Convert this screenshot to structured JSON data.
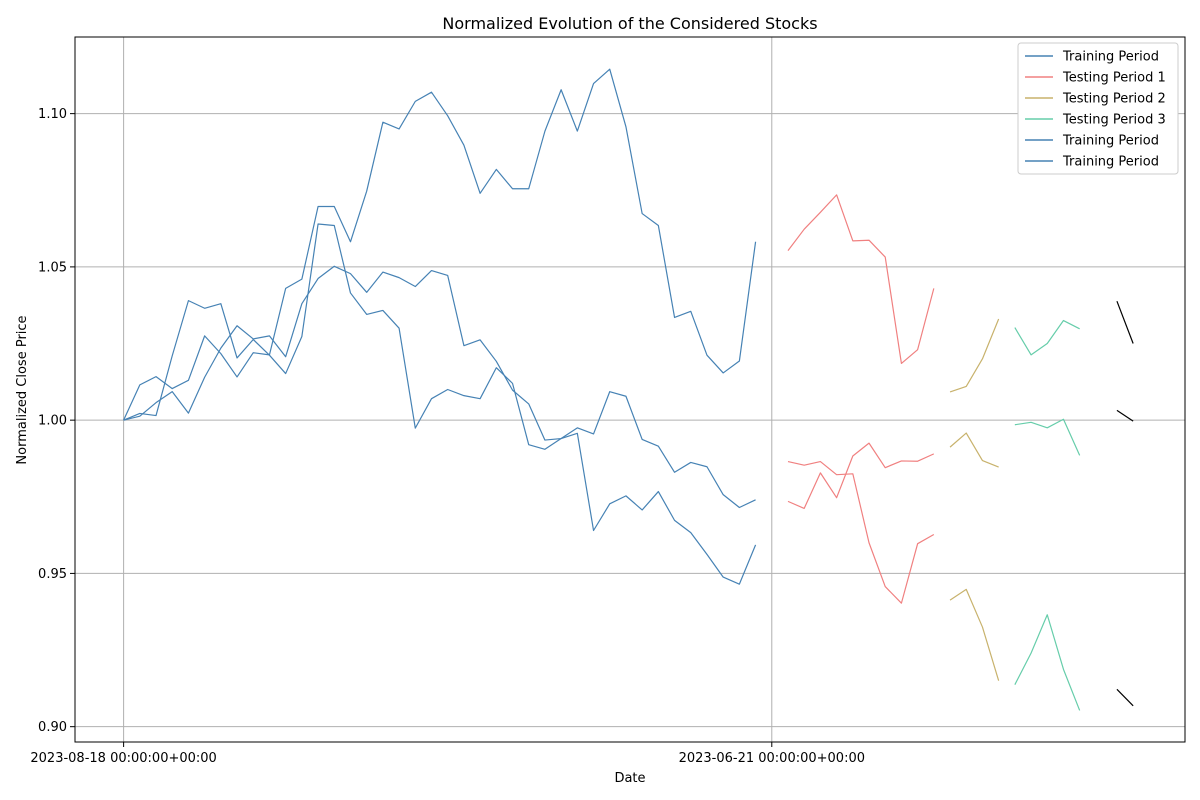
{
  "chart_data": {
    "type": "line",
    "title": "Normalized Evolution of the Considered Stocks",
    "xlabel": "Date",
    "ylabel": "Normalized Close Price",
    "ylim": [
      0.895,
      1.125
    ],
    "y_ticks": [
      "0.90",
      "0.95",
      "1.00",
      "1.05",
      "1.10"
    ],
    "y_tick_values": [
      0.9,
      0.95,
      1.0,
      1.05,
      1.1
    ],
    "x_ticks": [
      "2023-08-18 00:00:00+00:00",
      "2023-06-21 00:00:00+00:00"
    ],
    "x_tick_index": [
      0,
      40
    ],
    "xlim_index": [
      -3,
      65.5
    ],
    "grid": true,
    "legend_position": "top-right",
    "legend": [
      "Training Period",
      "Testing Period 1",
      "Testing Period 2",
      "Testing Period 3",
      "Training Period",
      "Training Period"
    ],
    "colors": {
      "training": "#4682b4",
      "testing1": "#f08080",
      "testing2": "#c8b26c",
      "testing3": "#66cdaa",
      "black": "#000000"
    },
    "series": [
      {
        "name": "Training Period",
        "color": "#4682b4",
        "x_start": 0,
        "values": [
          1.0,
          1.0115,
          1.0142,
          1.0103,
          1.013,
          1.0275,
          1.0217,
          1.0141,
          1.022,
          1.0213,
          1.043,
          1.046,
          1.0697,
          1.0697,
          1.0582,
          1.0747,
          1.0972,
          1.095,
          1.104,
          1.107,
          1.0993,
          1.0897,
          1.074,
          1.0818,
          1.0755,
          1.0755,
          1.0943,
          1.1078,
          1.0943,
          1.1098,
          1.1145,
          1.0957,
          1.0674,
          1.0635,
          1.0335,
          1.0355,
          1.0212,
          1.0154,
          1.0193,
          1.0582
        ]
      },
      {
        "name": "Training Period",
        "color": "#4682b4",
        "x_start": 0,
        "values": [
          1.0,
          1.0013,
          1.0057,
          1.0093,
          1.0023,
          1.014,
          1.0235,
          1.0308,
          1.0265,
          1.0275,
          1.0207,
          1.038,
          1.0462,
          1.0502,
          1.0478,
          1.0417,
          1.0483,
          1.0465,
          1.0436,
          1.0488,
          1.0472,
          1.0243,
          1.0262,
          1.0192,
          1.0098,
          1.0053,
          0.9935,
          0.994,
          0.9975,
          0.9955,
          1.0093,
          1.0078,
          0.9937,
          0.9915,
          0.983,
          0.9862,
          0.9848,
          0.9757,
          0.9715,
          0.974
        ]
      },
      {
        "name": "Training Period",
        "color": "#4682b4",
        "x_start": 0,
        "values": [
          1.0,
          1.0022,
          1.0015,
          1.021,
          1.039,
          1.0365,
          1.038,
          1.0203,
          1.0263,
          1.0212,
          1.0152,
          1.0273,
          1.064,
          1.0635,
          1.0415,
          1.0345,
          1.0358,
          1.03,
          0.9974,
          1.007,
          1.01,
          1.008,
          1.007,
          1.0171,
          1.012,
          0.992,
          0.9905,
          0.994,
          0.9957,
          0.964,
          0.9727,
          0.9753,
          0.9707,
          0.9767,
          0.9673,
          0.9633,
          0.9562,
          0.9488,
          0.9465,
          0.9593
        ]
      },
      {
        "name": "Testing Period 1",
        "color": "#f08080",
        "x_start": 41,
        "values": [
          1.0553,
          1.0623,
          1.0678,
          1.0735,
          1.0585,
          1.0587,
          1.0532,
          1.0185,
          1.023,
          1.043
        ]
      },
      {
        "name": "Testing Period 1",
        "color": "#f08080",
        "x_start": 41,
        "values": [
          0.9865,
          0.9853,
          0.9865,
          0.9822,
          0.9825,
          0.96,
          0.9457,
          0.9403,
          0.9597,
          0.9627
        ]
      },
      {
        "name": "Testing Period 1",
        "color": "#f08080",
        "x_start": 41,
        "values": [
          0.9735,
          0.9712,
          0.9828,
          0.9747,
          0.9883,
          0.9925,
          0.9845,
          0.9867,
          0.9866,
          0.989
        ]
      },
      {
        "name": "Testing Period 2",
        "color": "#c8b26c",
        "x_start": 51,
        "values": [
          1.0092,
          1.011,
          1.02,
          1.033
        ]
      },
      {
        "name": "Testing Period 2",
        "color": "#c8b26c",
        "x_start": 51,
        "values": [
          0.9912,
          0.9958,
          0.9868,
          0.9847
        ]
      },
      {
        "name": "Testing Period 2",
        "color": "#c8b26c",
        "x_start": 51,
        "values": [
          0.9413,
          0.9448,
          0.9325,
          0.915
        ]
      },
      {
        "name": "Testing Period 3",
        "color": "#66cdaa",
        "x_start": 55,
        "values": [
          1.0302,
          1.0213,
          1.025,
          1.0325,
          1.0298
        ]
      },
      {
        "name": "Testing Period 3",
        "color": "#66cdaa",
        "x_start": 55,
        "values": [
          0.9985,
          0.9993,
          0.9975,
          1.0003,
          0.9885
        ]
      },
      {
        "name": "Testing Period 3",
        "color": "#66cdaa",
        "x_start": 55,
        "values": [
          0.9137,
          0.924,
          0.9365,
          0.9187,
          0.9053
        ]
      },
      {
        "name": "",
        "color": "#000000",
        "x_start": 61.3,
        "x_step": 1,
        "values": [
          1.0388,
          1.025
        ]
      },
      {
        "name": "",
        "color": "#000000",
        "x_start": 61.3,
        "x_step": 1,
        "values": [
          1.0032,
          0.9997
        ]
      },
      {
        "name": "",
        "color": "#000000",
        "x_start": 61.3,
        "x_step": 1,
        "values": [
          0.9122,
          0.9068
        ]
      }
    ]
  }
}
